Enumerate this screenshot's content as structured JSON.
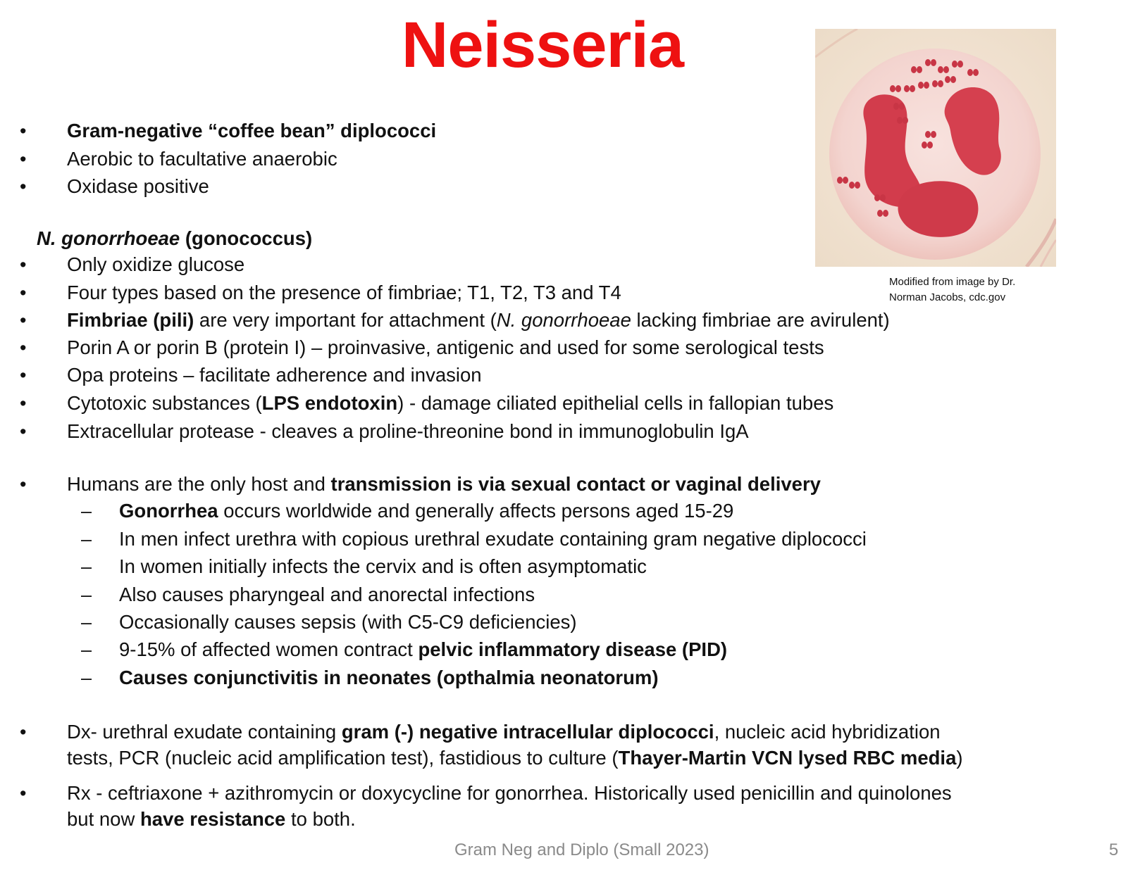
{
  "title": "Neisseria",
  "image": {
    "alt": "micrograph-neutrophil-diplococci",
    "caption_line1": "Modified from image by Dr.",
    "caption_line2": "Norman Jacobs, cdc.gov",
    "colors": {
      "background": "#f1e3d3",
      "stain": "#d23c4c",
      "cytoplasm": "#f5d9d4"
    }
  },
  "general": [
    {
      "bold": "Gram-negative “coffee bean” diplococci"
    },
    {
      "text": "Aerobic to facultative anaerobic"
    },
    {
      "text": "Oxidase positive"
    }
  ],
  "gonorrhoeae_heading": {
    "italic": "N. gonorrhoeae",
    "rest": " (gonococcus)"
  },
  "properties": [
    {
      "text": "Only oxidize glucose"
    },
    {
      "text": "Four types based on the presence of fimbriae; T1, T2, T3 and T4"
    },
    {
      "b1": "Fimbriae (pili)",
      "t1": " are very important for attachment (",
      "i1": "N. gonorrhoeae",
      "t2": " lacking fimbriae are avirulent)"
    },
    {
      "text": "Porin A or porin B (protein I) – proinvasive, antigenic and used for some serological tests"
    },
    {
      "text": "Opa proteins – facilitate adherence  and invasion"
    },
    {
      "t1": "Cytotoxic substances (",
      "b1": "LPS endotoxin",
      "t2": ") - damage ciliated epithelial cells in fallopian tubes"
    },
    {
      "text": "Extracellular protease - cleaves a proline-threonine bond in immunoglobulin IgA"
    }
  ],
  "transmission": {
    "t1": "Humans are the only host and ",
    "b1": "transmission is via sexual contact or vaginal delivery",
    "dash_symbol": "–",
    "subitems": [
      {
        "b1": "Gonorrhea",
        "t1": " occurs worldwide and generally affects persons aged 15-29"
      },
      {
        "text": "In men infect urethra with copious urethral exudate containing gram negative diplococci"
      },
      {
        "text": "In women initially infects the cervix and is often asymptomatic"
      },
      {
        "text": "Also causes pharyngeal and anorectal infections"
      },
      {
        "text": "Occasionally causes sepsis (with C5-C9 deficiencies)"
      },
      {
        "t1": "9-15% of affected women contract ",
        "b1": "pelvic inflammatory disease (PID)"
      },
      {
        "b1": "Causes conjunctivitis in neonates (opthalmia neonatorum)"
      }
    ]
  },
  "diagnosis": {
    "line1_t1": "Dx- urethral exudate containing ",
    "line1_b1": "gram (-) negative intracellular diplococci",
    "line1_t2": ", nucleic acid hybridization",
    "line2_t1": "tests, PCR (nucleic acid amplification test), fastidious to culture (",
    "line2_b1": "Thayer-Martin VCN lysed RBC media",
    "line2_t2": ")"
  },
  "treatment": {
    "line1": "Rx - ceftriaxone + azithromycin or doxycycline for gonorrhea.  Historically used penicillin and quinolones",
    "line2_t1": "but now ",
    "line2_b1": "have resistance",
    "line2_t2": " to both."
  },
  "bullet_symbol": "•",
  "footer": "Gram Neg and Diplo (Small 2023)",
  "page_number": "5"
}
